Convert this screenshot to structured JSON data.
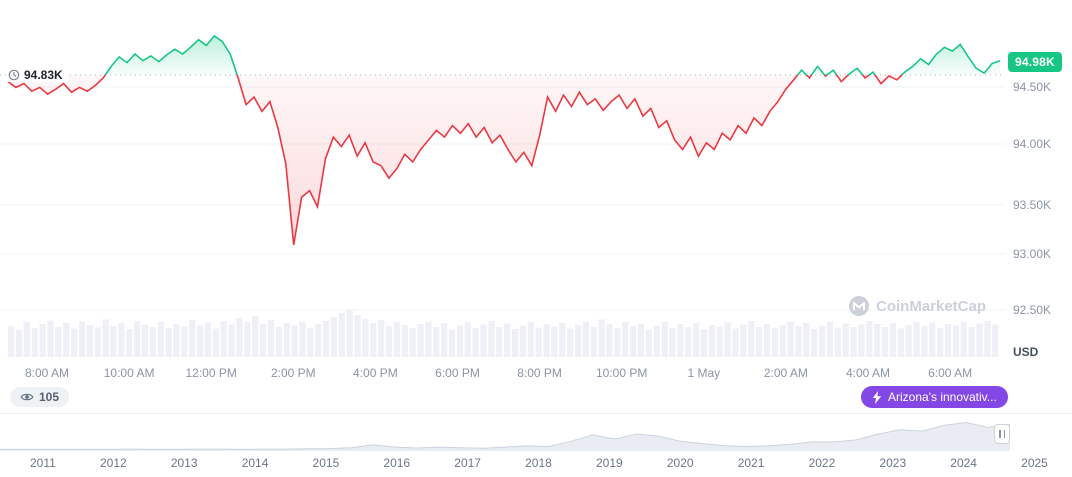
{
  "chart_data": {
    "type": "line",
    "title": "",
    "unit": "USD",
    "baseline": {
      "label": "94.83K",
      "value": 94.83
    },
    "last_price": {
      "label": "94.98K",
      "value": 94.98
    },
    "ylim": [
      92.5,
      95.35
    ],
    "y_ticks": [
      {
        "label": "94.50K",
        "value": 94.5
      },
      {
        "label": "94.00K",
        "value": 94.0
      },
      {
        "label": "93.50K",
        "value": 93.5
      },
      {
        "label": "93.00K",
        "value": 93.0
      },
      {
        "label": "92.50K",
        "value": 92.5
      }
    ],
    "x_ticks": [
      "8:00 AM",
      "10:00 AM",
      "12:00 PM",
      "2:00 PM",
      "4:00 PM",
      "6:00 PM",
      "8:00 PM",
      "10:00 PM",
      "1 May",
      "2:00 AM",
      "4:00 AM",
      "6:00 AM"
    ],
    "series": [
      {
        "name": "price-usd-thousands",
        "values": [
          94.76,
          94.7,
          94.74,
          94.66,
          94.7,
          94.63,
          94.68,
          94.74,
          94.65,
          94.7,
          94.66,
          94.72,
          94.8,
          94.92,
          95.02,
          94.96,
          95.05,
          94.98,
          95.03,
          94.97,
          95.04,
          95.1,
          95.05,
          95.12,
          95.2,
          95.14,
          95.24,
          95.18,
          95.05,
          94.8,
          94.52,
          94.6,
          94.45,
          94.55,
          94.28,
          93.9,
          93.05,
          93.55,
          93.62,
          93.45,
          93.95,
          94.18,
          94.08,
          94.2,
          93.98,
          94.12,
          93.92,
          93.88,
          93.75,
          93.85,
          94.0,
          93.92,
          94.05,
          94.15,
          94.25,
          94.18,
          94.3,
          94.22,
          94.32,
          94.18,
          94.28,
          94.12,
          94.2,
          94.05,
          93.92,
          94.02,
          93.88,
          94.2,
          94.6,
          94.45,
          94.62,
          94.5,
          94.65,
          94.52,
          94.58,
          94.46,
          94.55,
          94.62,
          94.48,
          94.58,
          94.4,
          94.48,
          94.28,
          94.35,
          94.15,
          94.05,
          94.18,
          93.98,
          94.12,
          94.05,
          94.22,
          94.15,
          94.3,
          94.22,
          94.38,
          94.3,
          94.45,
          94.55,
          94.68,
          94.78,
          94.88,
          94.8,
          94.92,
          94.82,
          94.88,
          94.76,
          94.84,
          94.9,
          94.8,
          94.86,
          94.74,
          94.82,
          94.78,
          94.86,
          94.92,
          95.0,
          94.94,
          95.05,
          95.12,
          95.08,
          95.15,
          95.02,
          94.9,
          94.85,
          94.95,
          94.98
        ]
      }
    ],
    "volume_rel": [
      0.62,
      0.55,
      0.7,
      0.58,
      0.66,
      0.73,
      0.6,
      0.68,
      0.57,
      0.71,
      0.64,
      0.59,
      0.75,
      0.62,
      0.68,
      0.56,
      0.72,
      0.65,
      0.6,
      0.7,
      0.58,
      0.66,
      0.61,
      0.74,
      0.63,
      0.69,
      0.57,
      0.72,
      0.65,
      0.78,
      0.7,
      0.82,
      0.66,
      0.74,
      0.6,
      0.68,
      0.63,
      0.71,
      0.58,
      0.66,
      0.72,
      0.8,
      0.88,
      0.95,
      0.84,
      0.76,
      0.68,
      0.74,
      0.62,
      0.7,
      0.64,
      0.58,
      0.66,
      0.71,
      0.6,
      0.68,
      0.55,
      0.63,
      0.7,
      0.58,
      0.65,
      0.72,
      0.6,
      0.67,
      0.56,
      0.63,
      0.7,
      0.59,
      0.66,
      0.61,
      0.68,
      0.57,
      0.64,
      0.71,
      0.6,
      0.75,
      0.66,
      0.58,
      0.7,
      0.62,
      0.67,
      0.55,
      0.63,
      0.7,
      0.58,
      0.66,
      0.6,
      0.68,
      0.56,
      0.64,
      0.61,
      0.69,
      0.57,
      0.65,
      0.72,
      0.6,
      0.66,
      0.58,
      0.64,
      0.7,
      0.62,
      0.68,
      0.56,
      0.63,
      0.71,
      0.59,
      0.67,
      0.6,
      0.65,
      0.72,
      0.66,
      0.6,
      0.68,
      0.57,
      0.64,
      0.7,
      0.62,
      0.69,
      0.58,
      0.66,
      0.63,
      0.7,
      0.6,
      0.67,
      0.72,
      0.65
    ],
    "navigator": {
      "years": [
        "2011",
        "2012",
        "2013",
        "2014",
        "2015",
        "2016",
        "2017",
        "2018",
        "2019",
        "2020",
        "2021",
        "2022",
        "2023",
        "2024",
        "2025"
      ],
      "values": [
        0.02,
        0.02,
        0.02,
        0.02,
        0.02,
        0.02,
        0.03,
        0.02,
        0.02,
        0.03,
        0.03,
        0.02,
        0.03,
        0.03,
        0.04,
        0.05,
        0.08,
        0.18,
        0.1,
        0.07,
        0.1,
        0.08,
        0.06,
        0.1,
        0.14,
        0.12,
        0.3,
        0.52,
        0.38,
        0.55,
        0.48,
        0.3,
        0.22,
        0.15,
        0.12,
        0.14,
        0.2,
        0.28,
        0.28,
        0.35,
        0.55,
        0.7,
        0.65,
        0.85,
        0.95,
        0.78,
        0.88
      ]
    },
    "colors": {
      "up": "#16c784",
      "down": "#ea3943",
      "volume": "#eef0f5",
      "baseline": "#aab2c0"
    }
  },
  "badges": {
    "watchers": "105",
    "news": "Arizona's innovativ..."
  },
  "watermark": {
    "label": "CoinMarketCap"
  },
  "colors": {
    "positive": "#16c784",
    "negative": "#ea3943",
    "news_badge": "#8247e5",
    "watermark": "#ccd0da"
  }
}
